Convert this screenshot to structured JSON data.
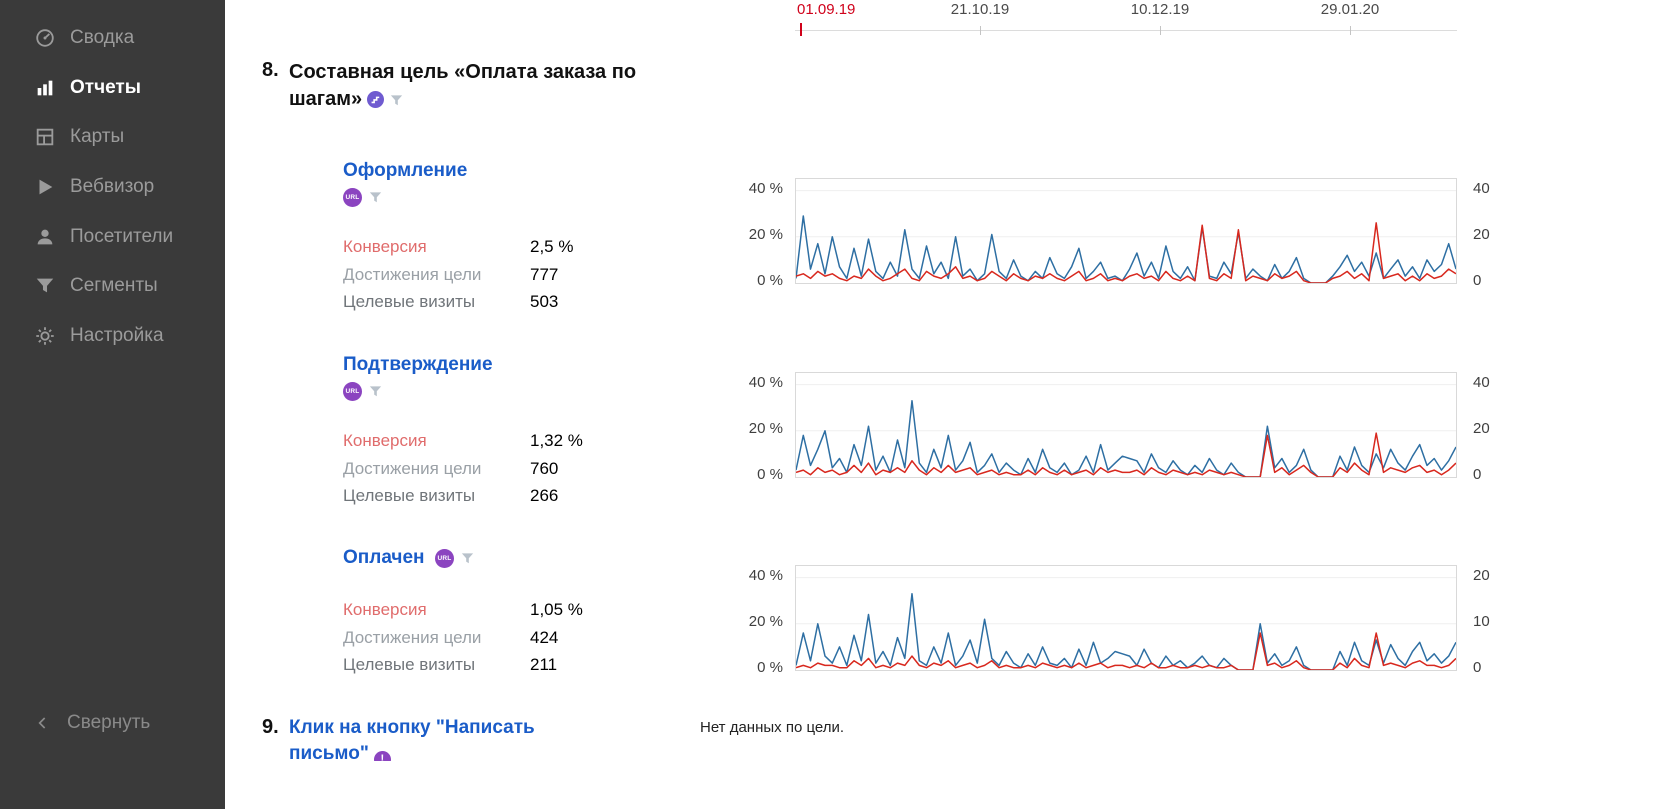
{
  "sidebar": {
    "items": [
      {
        "label": "Сводка",
        "icon": "gauge-icon"
      },
      {
        "label": "Отчеты",
        "icon": "bar-chart-icon",
        "active": true
      },
      {
        "label": "Карты",
        "icon": "maps-icon"
      },
      {
        "label": "Вебвизор",
        "icon": "play-icon"
      },
      {
        "label": "Посетители",
        "icon": "person-icon"
      },
      {
        "label": "Сегменты",
        "icon": "funnel-icon"
      },
      {
        "label": "Настройка",
        "icon": "gear-icon"
      }
    ],
    "collapse_label": "Свернуть"
  },
  "timeline": {
    "dates": [
      "01.09.19",
      "21.10.19",
      "10.12.19",
      "29.01.20"
    ],
    "highlight_date": "01.09.19",
    "highlight_color": "#d0021b"
  },
  "section8": {
    "number": "8.",
    "title": "Составная цель «Оплата заказа по шагам»",
    "goals": [
      {
        "title": "Оформление",
        "badge": "URL",
        "metrics": [
          {
            "label": "Конверсия",
            "value": "2,5 %"
          },
          {
            "label": "Достижения цели",
            "value": "777"
          },
          {
            "label": "Целевые визиты",
            "value": "503"
          }
        ]
      },
      {
        "title": "Подтверждение",
        "badge": "URL",
        "metrics": [
          {
            "label": "Конверсия",
            "value": "1,32 %"
          },
          {
            "label": "Достижения цели",
            "value": "760"
          },
          {
            "label": "Целевые визиты",
            "value": "266"
          }
        ]
      },
      {
        "title": "Оплачен",
        "badge": "URL",
        "metrics": [
          {
            "label": "Конверсия",
            "value": "1,05 %"
          },
          {
            "label": "Достижения цели",
            "value": "424"
          },
          {
            "label": "Целевые визиты",
            "value": "211"
          }
        ]
      }
    ]
  },
  "section9": {
    "number": "9.",
    "title": "Клик на кнопку \"Написать письмо\"",
    "status": "Нет данных по цели."
  },
  "colors": {
    "accent_blue": "#1a5cc8",
    "chart_blue": "#2e6fa3",
    "chart_red": "#d8281e",
    "conversion_label": "#e06c6c"
  },
  "chart_data": [
    {
      "type": "line",
      "title": "Оформление",
      "x_axis": [
        "01.09.19",
        "21.10.19",
        "10.12.19",
        "29.01.20"
      ],
      "ylim": [
        0,
        45
      ],
      "y_axis_left": [
        "40 %",
        "20 %",
        "0 %"
      ],
      "y_axis_right": [
        "40",
        "20",
        "0"
      ],
      "grid": true,
      "series": [
        {
          "name": "series-blue",
          "color": "#2e6fa3",
          "values": [
            2,
            29,
            6,
            17,
            4,
            20,
            7,
            2,
            15,
            3,
            19,
            5,
            2,
            9,
            3,
            23,
            6,
            2,
            16,
            4,
            9,
            2,
            20,
            3,
            6,
            1,
            4,
            21,
            5,
            2,
            10,
            3,
            1,
            5,
            2,
            11,
            4,
            2,
            7,
            15,
            2,
            5,
            9,
            2,
            3,
            1,
            6,
            13,
            3,
            9,
            2,
            16,
            5,
            2,
            7,
            1,
            24,
            3,
            2,
            9,
            4,
            22,
            2,
            6,
            3,
            1,
            8,
            2,
            5,
            11,
            2,
            0,
            0,
            0,
            3,
            7,
            12,
            5,
            9,
            3,
            13,
            2,
            6,
            10,
            3,
            7,
            2,
            10,
            5,
            8,
            17,
            6
          ]
        },
        {
          "name": "series-red",
          "color": "#d8281e",
          "values": [
            3,
            4,
            2,
            5,
            3,
            4,
            2,
            1,
            3,
            2,
            6,
            3,
            1,
            2,
            4,
            6,
            2,
            1,
            5,
            3,
            2,
            4,
            7,
            2,
            3,
            1,
            2,
            5,
            3,
            1,
            4,
            2,
            1,
            3,
            2,
            4,
            2,
            1,
            3,
            5,
            1,
            2,
            4,
            1,
            2,
            1,
            3,
            4,
            2,
            3,
            1,
            5,
            2,
            1,
            3,
            1,
            25,
            2,
            1,
            4,
            2,
            23,
            1,
            3,
            2,
            1,
            4,
            2,
            3,
            5,
            1,
            0,
            0,
            0,
            2,
            3,
            5,
            2,
            4,
            1,
            26,
            2,
            3,
            4,
            1,
            3,
            1,
            4,
            2,
            3,
            6,
            4
          ]
        }
      ]
    },
    {
      "type": "line",
      "title": "Подтверждение",
      "x_axis": [
        "01.09.19",
        "21.10.19",
        "10.12.19",
        "29.01.20"
      ],
      "ylim": [
        0,
        45
      ],
      "y_axis_left": [
        "40 %",
        "20 %",
        "0 %"
      ],
      "y_axis_right": [
        "40",
        "20",
        "0"
      ],
      "grid": true,
      "series": [
        {
          "name": "series-blue",
          "color": "#2e6fa3",
          "values": [
            3,
            18,
            5,
            12,
            20,
            4,
            8,
            2,
            14,
            5,
            22,
            3,
            9,
            2,
            16,
            4,
            33,
            6,
            2,
            12,
            4,
            18,
            3,
            7,
            15,
            2,
            5,
            10,
            2,
            6,
            3,
            1,
            8,
            2,
            12,
            4,
            2,
            6,
            1,
            3,
            9,
            2,
            14,
            3,
            6,
            9,
            8,
            7,
            2,
            10,
            4,
            2,
            7,
            3,
            1,
            5,
            2,
            8,
            3,
            1,
            6,
            2,
            0,
            0,
            0,
            22,
            4,
            8,
            2,
            5,
            12,
            3,
            0,
            0,
            0,
            9,
            3,
            13,
            5,
            2,
            10,
            4,
            12,
            6,
            3,
            9,
            14,
            5,
            8,
            3,
            7,
            13
          ]
        },
        {
          "name": "series-red",
          "color": "#d8281e",
          "values": [
            2,
            3,
            1,
            4,
            2,
            3,
            1,
            2,
            5,
            2,
            6,
            1,
            3,
            2,
            4,
            2,
            7,
            3,
            1,
            4,
            2,
            5,
            2,
            3,
            4,
            1,
            2,
            3,
            1,
            2,
            1,
            1,
            3,
            1,
            4,
            2,
            1,
            3,
            1,
            2,
            3,
            1,
            4,
            2,
            3,
            2,
            2,
            3,
            1,
            4,
            2,
            1,
            3,
            2,
            1,
            2,
            1,
            3,
            2,
            1,
            2,
            1,
            0,
            0,
            0,
            18,
            2,
            4,
            1,
            3,
            5,
            2,
            0,
            0,
            0,
            4,
            2,
            6,
            3,
            1,
            19,
            2,
            4,
            3,
            2,
            4,
            5,
            2,
            3,
            1,
            3,
            6
          ]
        }
      ]
    },
    {
      "type": "line",
      "title": "Оплачен",
      "x_axis": [
        "01.09.19",
        "21.10.19",
        "10.12.19",
        "29.01.20"
      ],
      "ylim": [
        0,
        45
      ],
      "y_axis_left": [
        "40 %",
        "20 %",
        "0 %"
      ],
      "y_axis_right": [
        "20",
        "10",
        "0"
      ],
      "grid": true,
      "series": [
        {
          "name": "series-blue",
          "color": "#2e6fa3",
          "values": [
            2,
            16,
            4,
            20,
            6,
            3,
            10,
            2,
            15,
            4,
            24,
            3,
            8,
            2,
            14,
            5,
            33,
            4,
            2,
            10,
            3,
            16,
            2,
            6,
            13,
            3,
            22,
            5,
            2,
            8,
            3,
            1,
            7,
            2,
            10,
            3,
            2,
            5,
            1,
            9,
            2,
            12,
            3,
            5,
            8,
            7,
            6,
            2,
            9,
            3,
            1,
            6,
            2,
            4,
            1,
            3,
            6,
            2,
            1,
            5,
            2,
            0,
            0,
            0,
            20,
            3,
            7,
            2,
            4,
            10,
            2,
            0,
            0,
            0,
            0,
            8,
            2,
            12,
            4,
            2,
            13,
            3,
            11,
            5,
            2,
            8,
            12,
            4,
            7,
            3,
            6,
            12
          ]
        },
        {
          "name": "series-red",
          "color": "#d8281e",
          "values": [
            1,
            2,
            1,
            3,
            2,
            2,
            1,
            1,
            4,
            2,
            5,
            1,
            2,
            1,
            3,
            2,
            6,
            2,
            1,
            3,
            2,
            4,
            1,
            2,
            3,
            1,
            2,
            4,
            1,
            2,
            1,
            1,
            2,
            1,
            3,
            2,
            1,
            2,
            1,
            3,
            1,
            2,
            3,
            1,
            2,
            2,
            1,
            2,
            1,
            3,
            1,
            1,
            2,
            1,
            1,
            2,
            1,
            2,
            1,
            1,
            2,
            0,
            0,
            0,
            16,
            2,
            3,
            1,
            2,
            4,
            1,
            0,
            0,
            0,
            0,
            3,
            1,
            5,
            2,
            1,
            16,
            2,
            3,
            2,
            1,
            3,
            4,
            2,
            2,
            1,
            2,
            5
          ]
        }
      ]
    }
  ]
}
